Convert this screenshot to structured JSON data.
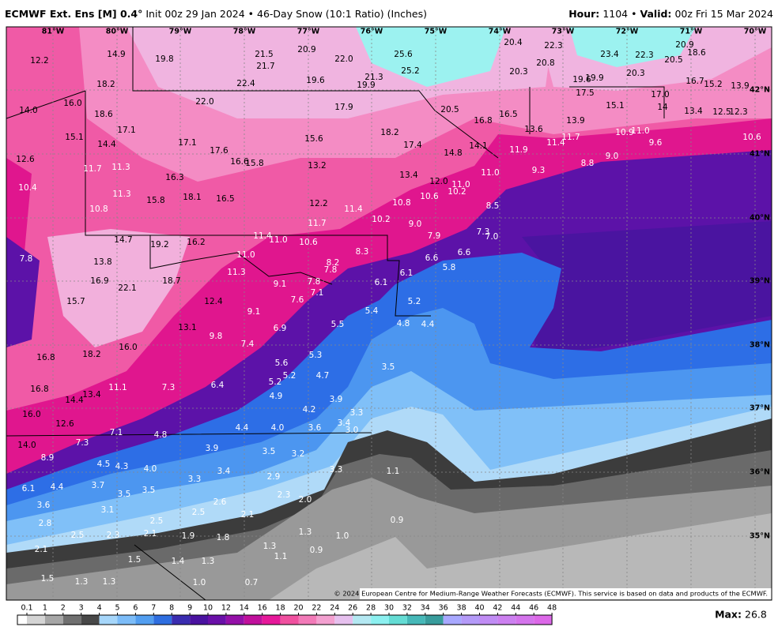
{
  "header": {
    "model": "ECMWF Ext. Ens [M] 0.4°",
    "description": "Init 00z 29 Jan 2024 • 46-Day Snow (10:1 Ratio) (Inches)",
    "hour_label": "Hour:",
    "hour": "1104 •",
    "valid_label": "Valid:",
    "valid": "00z Fri 15 Mar 2024"
  },
  "map": {
    "lon_labels": [
      "81°W",
      "80°W",
      "79°W",
      "78°W",
      "77°W",
      "76°W",
      "75°W",
      "74°W",
      "73°W",
      "72°W",
      "71°W",
      "70°W"
    ],
    "lat_labels": [
      "42°N",
      "41°N",
      "40°N",
      "39°N",
      "38°N",
      "37°N",
      "36°N",
      "35°N"
    ],
    "labels": [
      "12.2",
      "14.9",
      "19.8",
      "21.5",
      "20.9",
      "21.7",
      "22.0",
      "25.6",
      "25.2",
      "20.4",
      "22.3",
      "23.4",
      "22.3",
      "20.9",
      "18.6",
      "20.5",
      "20.3",
      "20.8",
      "20.3",
      "19.6",
      "19.9",
      "16.7",
      "15.2",
      "13.9",
      "18.2",
      "22.4",
      "19.6",
      "21.3",
      "19.9",
      "17.5",
      "15.1",
      "17.0",
      "14",
      "13.4",
      "12.5",
      "12.3",
      "16.0",
      "14.0",
      "18.6",
      "22.0",
      "17.9",
      "20.5",
      "16.8",
      "16.5",
      "13.6",
      "13.9",
      "17.1",
      "15.1",
      "14.4",
      "17.1",
      "17.6",
      "15.6",
      "18.2",
      "17.4",
      "14.8",
      "14.1",
      "11.9",
      "11.4",
      "11.7",
      "10.9",
      "11.0",
      "9.6",
      "10.6",
      "12.6",
      "11.7",
      "11.3",
      "16.6",
      "15.8",
      "13.2",
      "13.4",
      "11.0",
      "9.3",
      "8.8",
      "9.0",
      "10.4",
      "16.3",
      "12.0",
      "11.0",
      "10.2",
      "10.6",
      "11.3",
      "18.1",
      "16.5",
      "15.8",
      "12.2",
      "11.4",
      "10.8",
      "8.5",
      "10.8",
      "11.7",
      "10.2",
      "9.0",
      "7.9",
      "7.3",
      "7.0",
      "14.7",
      "19.2",
      "16.2",
      "11.4",
      "11.0",
      "10.6",
      "8.3",
      "7.8",
      "13.8",
      "11.0",
      "8.2",
      "7.8",
      "6.6",
      "6.6",
      "5.8",
      "16.9",
      "22.1",
      "18.7",
      "11.3",
      "9.1",
      "7.8",
      "7.1",
      "6.1",
      "6.1",
      "15.7",
      "12.4",
      "7.6",
      "5.2",
      "5.4",
      "9.1",
      "13.1",
      "6.9",
      "5.5",
      "4.8",
      "4.4",
      "9.8",
      "7.4",
      "16.0",
      "16.8",
      "18.2",
      "5.3",
      "5.6",
      "5.2",
      "5.2",
      "4.7",
      "3.5",
      "11.1",
      "7.3",
      "6.4",
      "16.8",
      "14.4",
      "13.4",
      "4.9",
      "3.9",
      "4.2",
      "16.0",
      "12.6",
      "3.3",
      "3.4",
      "3.0",
      "7.1",
      "4.8",
      "4.4",
      "4.0",
      "3.6",
      "14.0",
      "7.3",
      "3.9",
      "3.5",
      "3.2",
      "8.9",
      "4.5",
      "4.3",
      "4.0",
      "3.4",
      "2.9",
      "3.3",
      "4.4",
      "6.1",
      "3.7",
      "3.5",
      "3.5",
      "3.3",
      "2.3",
      "2.0",
      "2.6",
      "3.6",
      "3.1",
      "2.5",
      "2.1",
      "2.8",
      "2.5",
      "1.3",
      "2.5",
      "2.3",
      "2.1",
      "1.9",
      "1.8",
      "2.1",
      "1.3",
      "1.5",
      "1.4",
      "1.3",
      "1.1",
      "0.9",
      "1.0",
      "1.3",
      "1.5",
      "1.3",
      "1.0",
      "0.7",
      "0.9",
      "1.1"
    ]
  },
  "credit": "© 2024 European Centre for Medium-Range Weather Forecasts (ECMWF). This service is based on data and products of the ECMWF.",
  "colorbar": {
    "ticks": [
      0.1,
      1,
      2,
      3,
      4,
      5,
      6,
      7,
      8,
      9,
      10,
      12,
      14,
      16,
      18,
      20,
      22,
      24,
      26,
      28,
      30,
      32,
      34,
      36,
      38,
      40,
      42,
      44,
      46,
      48
    ]
  },
  "max_label": "Max:",
  "max_value": "26.8"
}
